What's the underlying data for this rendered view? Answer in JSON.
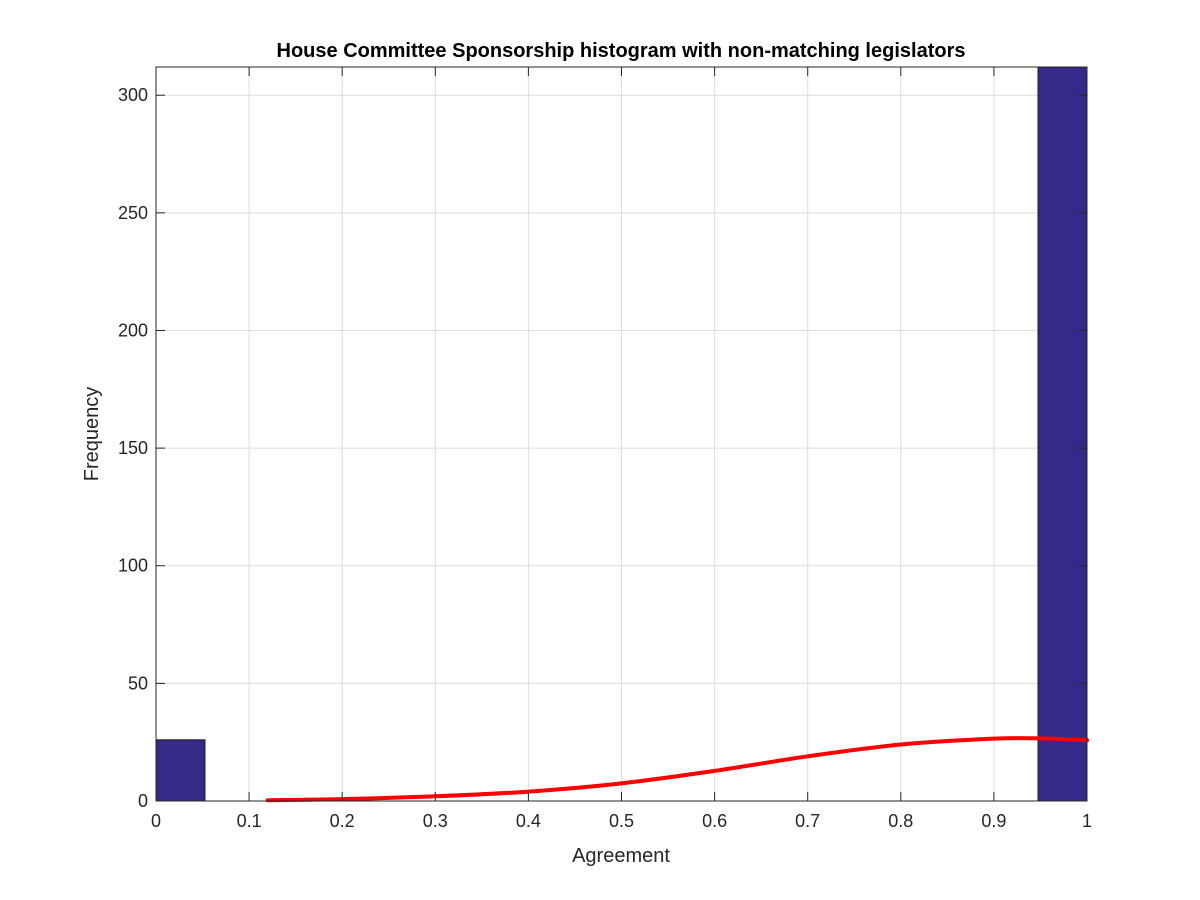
{
  "chart_data": {
    "type": "bar",
    "title": "House Committee Sponsorship histogram with non-matching legislators",
    "xlabel": "Agreement",
    "ylabel": "Frequency",
    "xlim": [
      0,
      1
    ],
    "ylim": [
      0,
      312
    ],
    "xticks": [
      "0",
      "0.1",
      "0.2",
      "0.3",
      "0.4",
      "0.5",
      "0.6",
      "0.7",
      "0.8",
      "0.9",
      "1"
    ],
    "yticks": [
      "0",
      "50",
      "100",
      "150",
      "200",
      "250",
      "300"
    ],
    "grid": true,
    "bar_color": "#352a87",
    "fit_color": "#ff0000",
    "bins": [
      {
        "x0": 0.0,
        "x1": 0.0526,
        "value": 26
      },
      {
        "x0": 0.9474,
        "x1": 1.0,
        "value": 312
      }
    ],
    "fit_curve": {
      "x": [
        0.12,
        0.2,
        0.3,
        0.4,
        0.5,
        0.6,
        0.7,
        0.8,
        0.9,
        0.95,
        1.0
      ],
      "y": [
        0.3,
        0.8,
        2.0,
        4.0,
        7.5,
        12.8,
        19.0,
        24.0,
        26.5,
        26.6,
        25.8
      ]
    }
  }
}
